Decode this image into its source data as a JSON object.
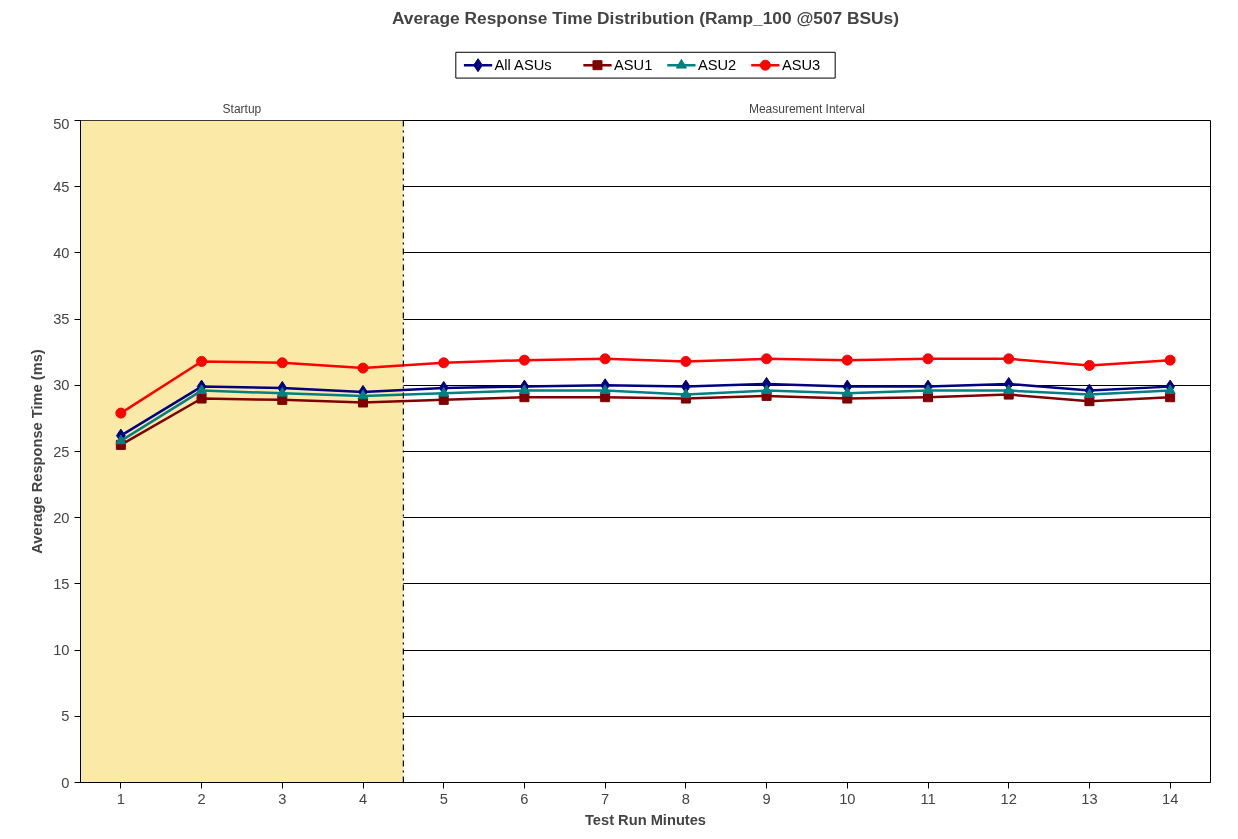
{
  "chart_data": {
    "type": "line",
    "title": "Average Response Time Distribution (Ramp_100 @507 BSUs)",
    "xlabel": "Test Run Minutes",
    "ylabel": "Average Response Time (ms)",
    "x": [
      1,
      2,
      3,
      4,
      5,
      6,
      7,
      8,
      9,
      10,
      11,
      12,
      13,
      14
    ],
    "xlim": [
      0.5,
      14.5
    ],
    "xticks": [
      1,
      2,
      3,
      4,
      5,
      6,
      7,
      8,
      9,
      10,
      11,
      12,
      13,
      14
    ],
    "ylim": [
      0,
      50
    ],
    "yticks": [
      0,
      5,
      10,
      15,
      20,
      25,
      30,
      35,
      40,
      45,
      50
    ],
    "grid": "y",
    "legend": "top",
    "series": [
      {
        "name": "All ASUs",
        "color": "#000080",
        "marker": "diamond",
        "values": [
          26.2,
          29.9,
          29.8,
          29.5,
          29.8,
          29.9,
          30.0,
          29.9,
          30.1,
          29.9,
          29.9,
          30.1,
          29.6,
          29.9
        ]
      },
      {
        "name": "ASU1",
        "color": "#800000",
        "marker": "square",
        "values": [
          25.5,
          29.0,
          28.9,
          28.7,
          28.9,
          29.1,
          29.1,
          29.0,
          29.2,
          29.0,
          29.1,
          29.3,
          28.8,
          29.1
        ]
      },
      {
        "name": "ASU2",
        "color": "#008080",
        "marker": "triangle",
        "values": [
          25.8,
          29.6,
          29.4,
          29.2,
          29.4,
          29.6,
          29.6,
          29.3,
          29.6,
          29.4,
          29.6,
          29.6,
          29.3,
          29.6
        ]
      },
      {
        "name": "ASU3",
        "color": "#ff0000",
        "marker": "circle",
        "values": [
          27.9,
          31.8,
          31.7,
          31.3,
          31.7,
          31.9,
          32.0,
          31.8,
          32.0,
          31.9,
          32.0,
          32.0,
          31.5,
          31.9
        ]
      }
    ],
    "bands": [
      {
        "axis": "x",
        "from": 0.5,
        "to": 4.5,
        "label": "Startup",
        "color": "#fbe9a8"
      }
    ],
    "annotations": [
      "Measurement Interval"
    ],
    "ref_lines": [
      {
        "axis": "x",
        "value": 4.5,
        "label": null,
        "color": "#000000",
        "line_style": "dashdot"
      }
    ]
  }
}
